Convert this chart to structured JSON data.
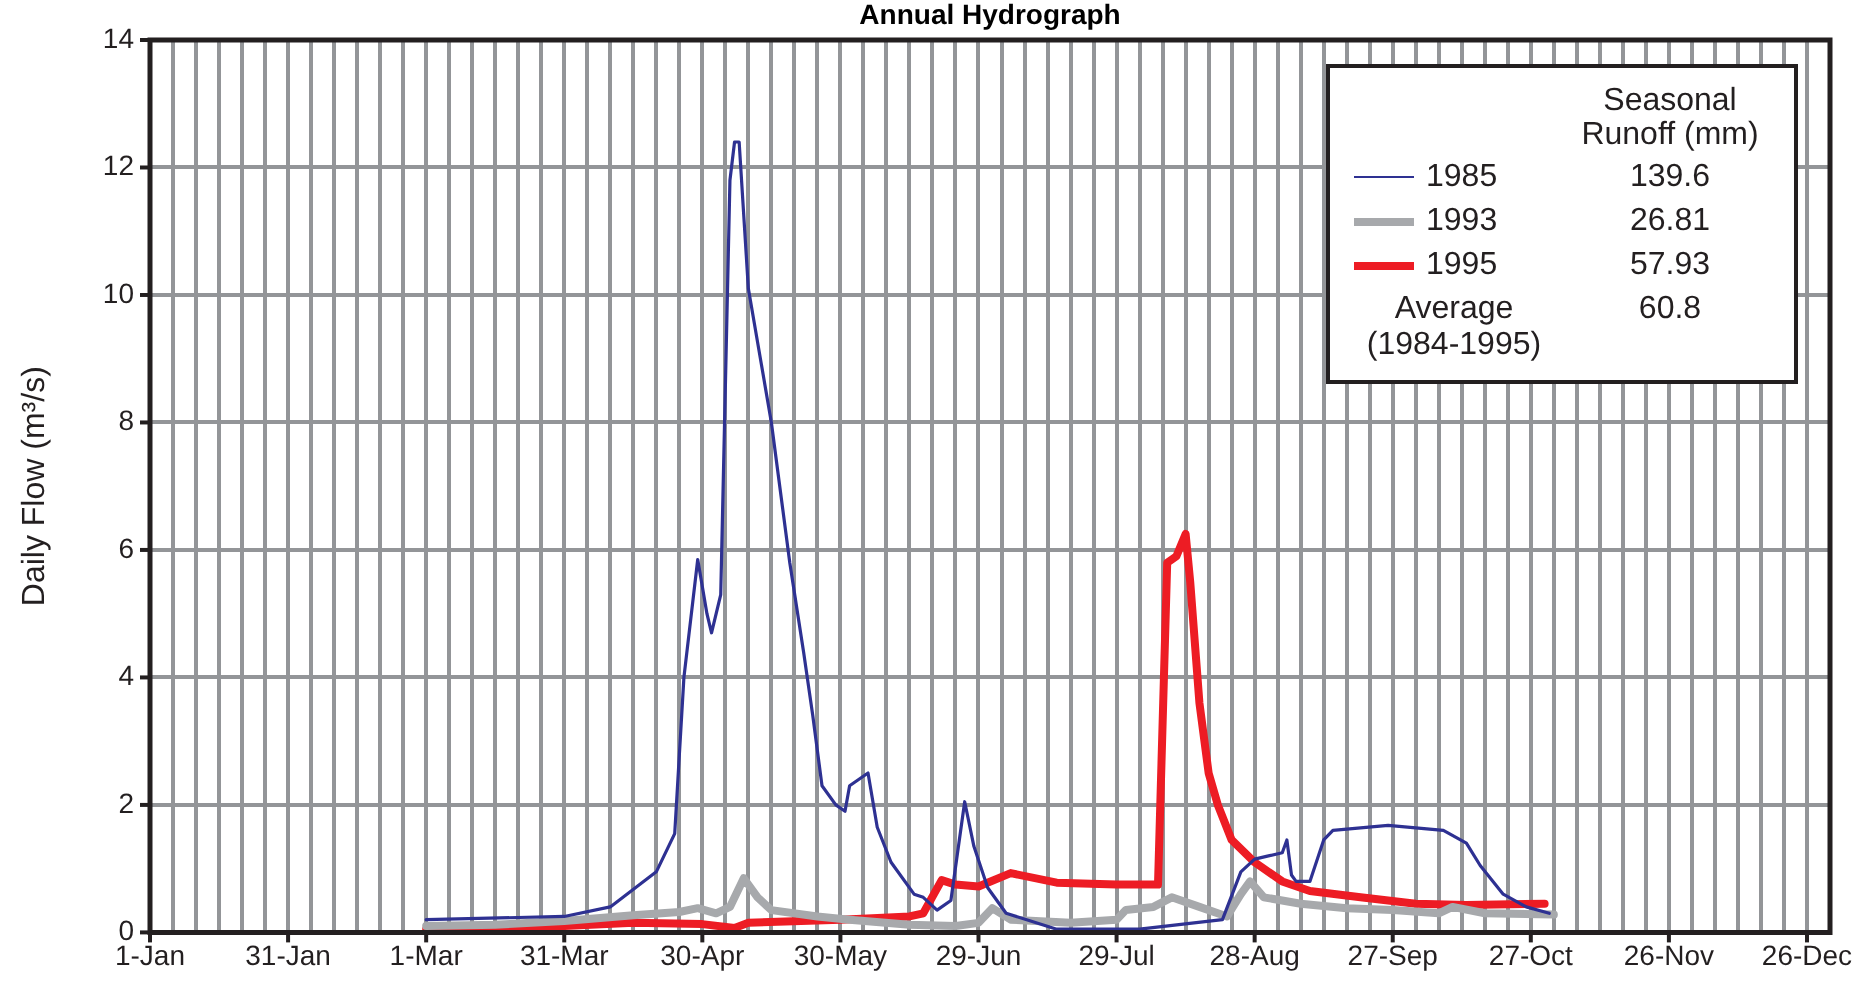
{
  "chart_data": {
    "type": "line",
    "title": "Annual Hydrograph",
    "ylabel": "Daily Flow (m³/s)",
    "xlim": [
      "--01-01",
      "--12-31"
    ],
    "ylim": [
      0,
      14
    ],
    "yticks": [
      0,
      2,
      4,
      6,
      8,
      10,
      12,
      14
    ],
    "xticks": [
      {
        "value": "--01-01",
        "label": "1-Jan"
      },
      {
        "value": "--01-06",
        "label": null
      },
      {
        "value": "--01-11",
        "label": null
      },
      {
        "value": "--01-16",
        "label": null
      },
      {
        "value": "--01-21",
        "label": null
      },
      {
        "value": "--01-26",
        "label": null
      },
      {
        "value": "--01-31",
        "label": "31-Jan"
      },
      {
        "value": "--02-05",
        "label": null
      },
      {
        "value": "--02-10",
        "label": null
      },
      {
        "value": "--02-15",
        "label": null
      },
      {
        "value": "--02-20",
        "label": null
      },
      {
        "value": "--02-25",
        "label": null
      },
      {
        "value": "--03-01",
        "label": "1-Mar"
      },
      {
        "value": "--03-06",
        "label": null
      },
      {
        "value": "--03-11",
        "label": null
      },
      {
        "value": "--03-16",
        "label": null
      },
      {
        "value": "--03-21",
        "label": null
      },
      {
        "value": "--03-26",
        "label": null
      },
      {
        "value": "--03-31",
        "label": "31-Mar"
      },
      {
        "value": "--04-05",
        "label": null
      },
      {
        "value": "--04-10",
        "label": null
      },
      {
        "value": "--04-15",
        "label": null
      },
      {
        "value": "--04-20",
        "label": null
      },
      {
        "value": "--04-25",
        "label": null
      },
      {
        "value": "--04-30",
        "label": "30-Apr"
      },
      {
        "value": "--05-05",
        "label": null
      },
      {
        "value": "--05-10",
        "label": null
      },
      {
        "value": "--05-15",
        "label": null
      },
      {
        "value": "--05-20",
        "label": null
      },
      {
        "value": "--05-25",
        "label": null
      },
      {
        "value": "--05-30",
        "label": "30-May"
      },
      {
        "value": "--06-04",
        "label": null
      },
      {
        "value": "--06-09",
        "label": null
      },
      {
        "value": "--06-14",
        "label": null
      },
      {
        "value": "--06-19",
        "label": null
      },
      {
        "value": "--06-24",
        "label": null
      },
      {
        "value": "--06-29",
        "label": "29-Jun"
      },
      {
        "value": "--07-04",
        "label": null
      },
      {
        "value": "--07-09",
        "label": null
      },
      {
        "value": "--07-14",
        "label": null
      },
      {
        "value": "--07-19",
        "label": null
      },
      {
        "value": "--07-24",
        "label": null
      },
      {
        "value": "--07-29",
        "label": "29-Jul"
      },
      {
        "value": "--08-03",
        "label": null
      },
      {
        "value": "--08-08",
        "label": null
      },
      {
        "value": "--08-13",
        "label": null
      },
      {
        "value": "--08-18",
        "label": null
      },
      {
        "value": "--08-23",
        "label": null
      },
      {
        "value": "--08-28",
        "label": "28-Aug"
      },
      {
        "value": "--09-02",
        "label": null
      },
      {
        "value": "--09-07",
        "label": null
      },
      {
        "value": "--09-12",
        "label": null
      },
      {
        "value": "--09-17",
        "label": null
      },
      {
        "value": "--09-22",
        "label": null
      },
      {
        "value": "--09-27",
        "label": "27-Sep"
      },
      {
        "value": "--10-02",
        "label": null
      },
      {
        "value": "--10-07",
        "label": null
      },
      {
        "value": "--10-12",
        "label": null
      },
      {
        "value": "--10-17",
        "label": null
      },
      {
        "value": "--10-22",
        "label": null
      },
      {
        "value": "--10-27",
        "label": "27-Oct"
      },
      {
        "value": "--11-01",
        "label": null
      },
      {
        "value": "--11-06",
        "label": null
      },
      {
        "value": "--11-11",
        "label": null
      },
      {
        "value": "--11-16",
        "label": null
      },
      {
        "value": "--11-21",
        "label": null
      },
      {
        "value": "--11-26",
        "label": "26-Nov"
      },
      {
        "value": "--12-01",
        "label": null
      },
      {
        "value": "--12-06",
        "label": null
      },
      {
        "value": "--12-11",
        "label": null
      },
      {
        "value": "--12-16",
        "label": null
      },
      {
        "value": "--12-21",
        "label": null
      },
      {
        "value": "--12-26",
        "label": "26-Dec"
      }
    ],
    "grid": true,
    "legend": "top right",
    "marker": "none",
    "line_style": "solid",
    "annotations": [
      "Seasonal Runoff (mm)",
      "139.6",
      "26.81",
      "57.93",
      "Average (1984-1995)",
      "60.8"
    ],
    "series": [
      {
        "name": "1985",
        "color": "#2e3192",
        "x": [
          "--03-01",
          "--03-31",
          "--04-10",
          "--04-20",
          "--04-24",
          "--04-26",
          "--04-29",
          "--05-01",
          "--05-02",
          "--05-04",
          "--05-06",
          "--05-07",
          "--05-08",
          "--05-10",
          "--05-15",
          "--05-19",
          "--05-22",
          "--05-24",
          "--05-26",
          "--05-29",
          "--05-31",
          "--06-01",
          "--06-05",
          "--06-07",
          "--06-10",
          "--06-15",
          "--06-17",
          "--06-20",
          "--06-23",
          "--06-26",
          "--06-28",
          "--07-01",
          "--07-05",
          "--07-16",
          "--08-03",
          "--08-21",
          "--08-25",
          "--08-28",
          "--08-31",
          "--09-03",
          "--09-04",
          "--09-05",
          "--09-06",
          "--09-09",
          "--09-12",
          "--09-14",
          "--09-26",
          "--10-08",
          "--10-13",
          "--10-16",
          "--10-21",
          "--10-26",
          "--10-31"
        ],
        "values": [
          0.2,
          0.25,
          0.4,
          0.95,
          1.55,
          4.0,
          5.85,
          5.0,
          4.7,
          5.3,
          11.8,
          12.4,
          12.4,
          10.1,
          8.0,
          5.8,
          4.4,
          3.4,
          2.3,
          2.0,
          1.9,
          2.3,
          2.5,
          1.65,
          1.1,
          0.6,
          0.55,
          0.35,
          0.5,
          2.05,
          1.35,
          0.7,
          0.3,
          0.05,
          0.05,
          0.2,
          0.95,
          1.15,
          1.2,
          1.25,
          1.45,
          0.9,
          0.8,
          0.8,
          1.45,
          1.6,
          1.68,
          1.6,
          1.4,
          1.05,
          0.6,
          0.4,
          0.3
        ]
      },
      {
        "name": "1993",
        "color": "#a7a9ac",
        "x": [
          "--03-01",
          "--03-16",
          "--03-31",
          "--04-15",
          "--04-25",
          "--04-29",
          "--05-03",
          "--05-06",
          "--05-09",
          "--05-12",
          "--05-15",
          "--05-25",
          "--06-01",
          "--06-14",
          "--06-24",
          "--06-29",
          "--07-02",
          "--07-06",
          "--07-19",
          "--07-29",
          "--07-31",
          "--08-06",
          "--08-10",
          "--08-16",
          "--08-22",
          "--08-25",
          "--08-27",
          "--08-30",
          "--09-07",
          "--09-17",
          "--09-27",
          "--10-07",
          "--10-10",
          "--10-17",
          "--11-01"
        ],
        "values": [
          0.1,
          0.12,
          0.18,
          0.27,
          0.32,
          0.38,
          0.3,
          0.4,
          0.85,
          0.55,
          0.35,
          0.25,
          0.2,
          0.12,
          0.1,
          0.15,
          0.38,
          0.2,
          0.15,
          0.2,
          0.35,
          0.4,
          0.55,
          0.4,
          0.25,
          0.6,
          0.8,
          0.55,
          0.45,
          0.38,
          0.35,
          0.3,
          0.4,
          0.3,
          0.28
        ]
      },
      {
        "name": "1995",
        "color": "#ed1c24",
        "x": [
          "--03-01",
          "--03-31",
          "--04-15",
          "--04-30",
          "--05-07",
          "--05-10",
          "--05-30",
          "--06-14",
          "--06-17",
          "--06-21",
          "--06-24",
          "--06-29",
          "--07-06",
          "--07-16",
          "--07-29",
          "--08-07",
          "--08-09",
          "--08-11",
          "--08-13",
          "--08-14",
          "--08-16",
          "--08-18",
          "--08-20",
          "--08-23",
          "--08-28",
          "--09-03",
          "--09-09",
          "--09-20",
          "--10-02",
          "--10-13",
          "--10-30"
        ],
        "values": [
          0.05,
          0.1,
          0.15,
          0.13,
          0.07,
          0.15,
          0.2,
          0.25,
          0.3,
          0.82,
          0.75,
          0.72,
          0.93,
          0.78,
          0.75,
          0.75,
          5.8,
          5.9,
          6.25,
          5.5,
          3.6,
          2.5,
          2.0,
          1.45,
          1.1,
          0.8,
          0.65,
          0.55,
          0.45,
          0.43,
          0.45
        ]
      }
    ]
  }
}
